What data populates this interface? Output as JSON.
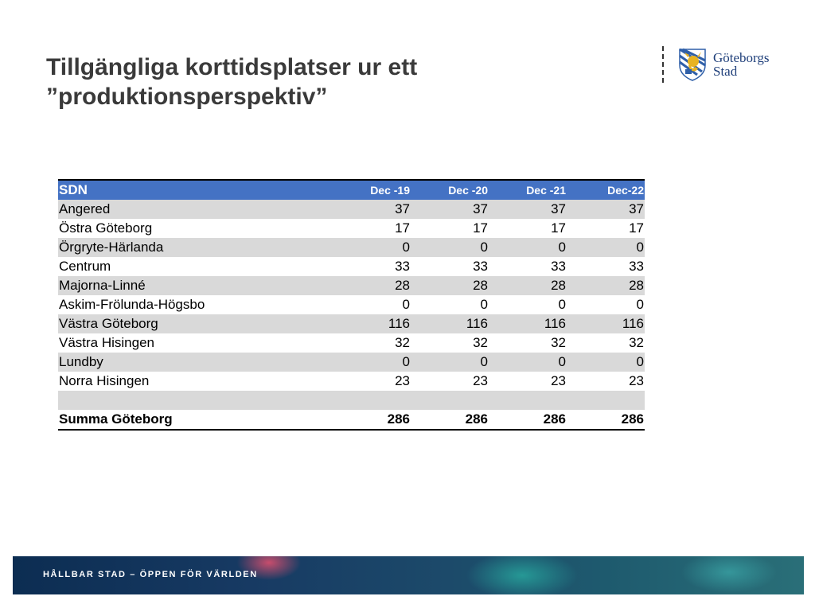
{
  "slide": {
    "title_line1": "Tillgängliga korttidsplatser ur ett",
    "title_line2": "”produktionsperspektiv”"
  },
  "logo": {
    "text_line1": "Göteborgs",
    "text_line2": "Stad",
    "colors": {
      "text": "#1f3f7a",
      "crest_blue": "#2f5fa8",
      "crest_gold": "#e8b321"
    }
  },
  "table": {
    "header": {
      "sdn": "SDN",
      "columns": [
        "Dec -19",
        "Dec -20",
        "Dec -21",
        "Dec-22"
      ]
    },
    "rows": [
      {
        "name": "Angered",
        "values": [
          "37",
          "37",
          "37",
          "37"
        ]
      },
      {
        "name": "Östra Göteborg",
        "values": [
          "17",
          "17",
          "17",
          "17"
        ]
      },
      {
        "name": "Örgryte-Härlanda",
        "values": [
          "0",
          "0",
          "0",
          "0"
        ]
      },
      {
        "name": "Centrum",
        "values": [
          "33",
          "33",
          "33",
          "33"
        ]
      },
      {
        "name": "Majorna-Linné",
        "values": [
          "28",
          "28",
          "28",
          "28"
        ]
      },
      {
        "name": "Askim-Frölunda-Högsbo",
        "values": [
          "0",
          "0",
          "0",
          "0"
        ]
      },
      {
        "name": "Västra Göteborg",
        "values": [
          "116",
          "116",
          "116",
          "116"
        ]
      },
      {
        "name": "Västra Hisingen",
        "values": [
          "32",
          "32",
          "32",
          "32"
        ]
      },
      {
        "name": "Lundby",
        "values": [
          "0",
          "0",
          "0",
          "0"
        ]
      },
      {
        "name": "Norra Hisingen",
        "values": [
          "23",
          "23",
          "23",
          "23"
        ]
      }
    ],
    "total": {
      "name": "Summa Göteborg",
      "values": [
        "286",
        "286",
        "286",
        "286"
      ]
    },
    "colors": {
      "header_bg": "#4472c4",
      "header_text": "#ffffff",
      "shade": "#d9d9d9"
    }
  },
  "footer": {
    "tagline": "HÅLLBAR STAD – ÖPPEN FÖR VÄRLDEN"
  }
}
